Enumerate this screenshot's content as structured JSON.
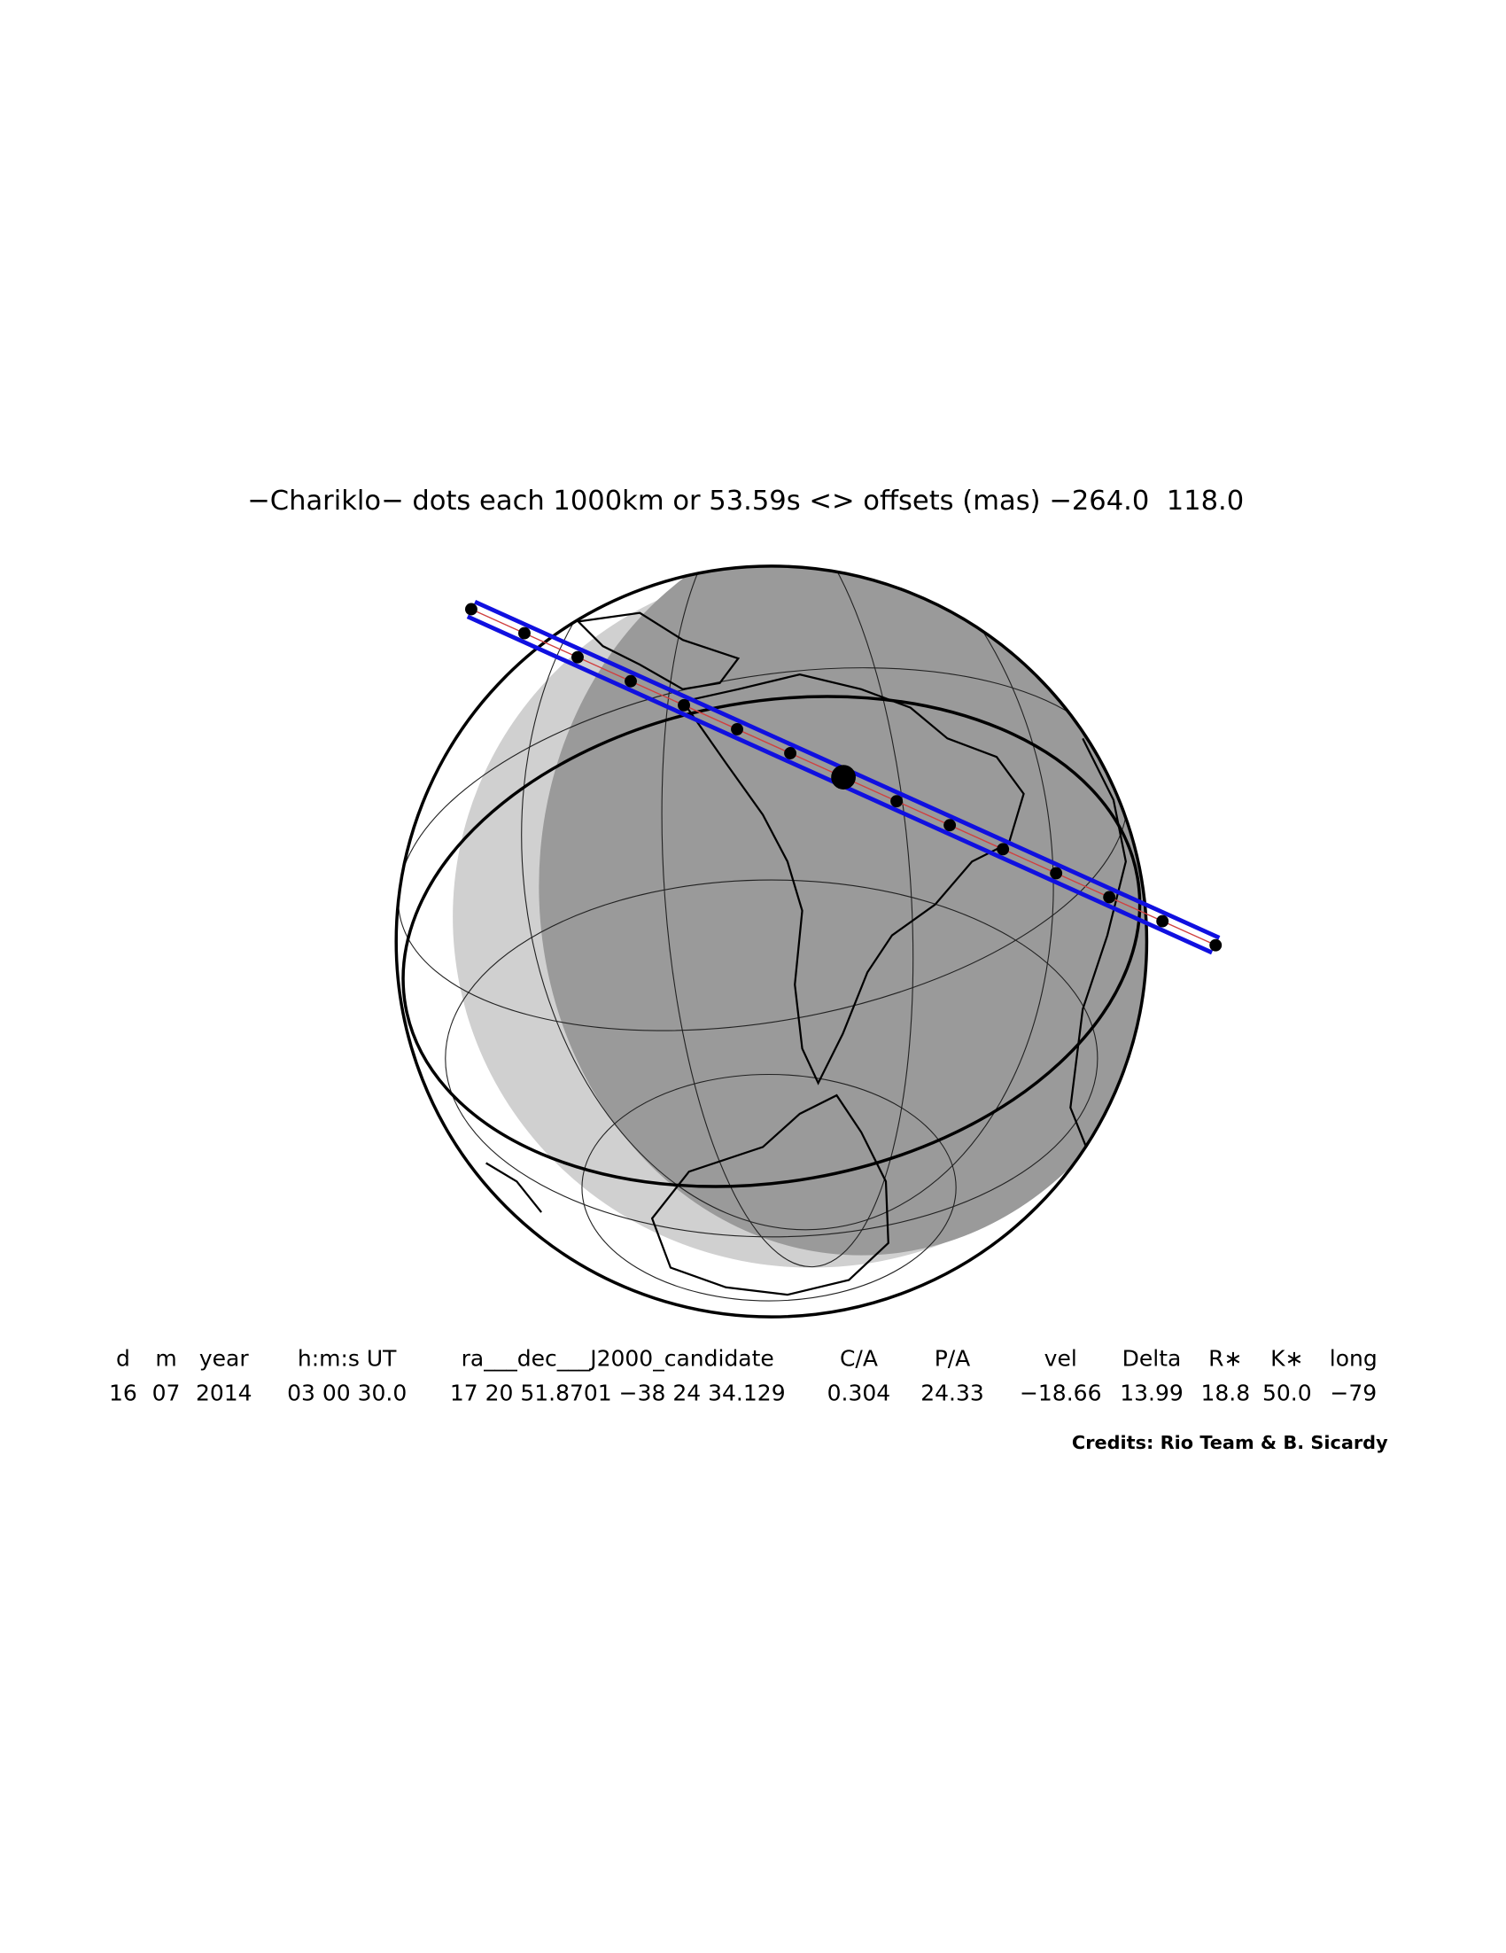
{
  "title": "−Chariklo− dots each 1000km or 53.59s <> offsets (mas) −264.0  118.0",
  "table": {
    "header": [
      "d",
      "m",
      "year",
      "h:m:s UT",
      "ra___dec___J2000_candidate",
      "C/A",
      "P/A",
      "vel",
      "Delta",
      "R∗",
      "K∗",
      "long"
    ],
    "rows": [
      [
        "16",
        "07",
        "2014",
        "03 00 30.0",
        "17 20 51.8701 −38 24 34.129",
        "0.304",
        "24.33",
        "−18.66",
        "13.99",
        "18.8",
        "50.0",
        "−79"
      ]
    ]
  },
  "credits": "Credits: Rio Team & B. Sicardy"
}
